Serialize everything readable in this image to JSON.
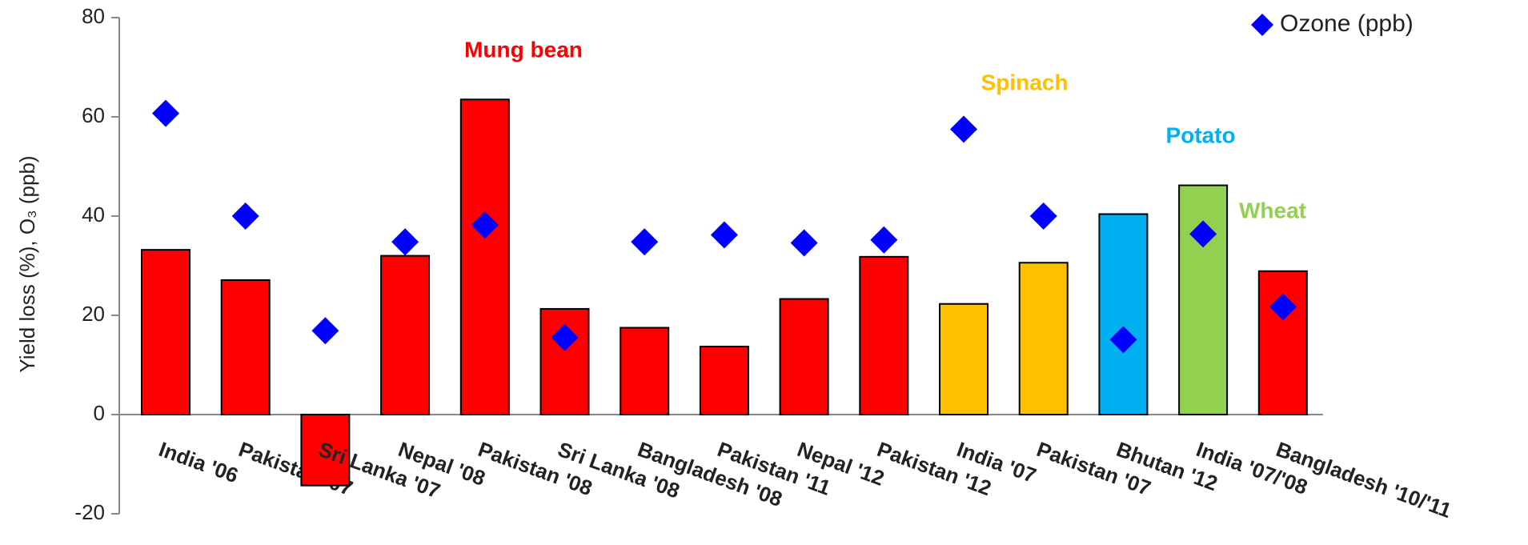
{
  "chart_data": {
    "type": "bar",
    "ylabel": "Yield loss (%), O₃ (ppb)",
    "categories": [
      "India '06",
      "Pakistan '07",
      "Sri Lanka '07",
      "Nepal '08",
      "Pakistan '08",
      "Sri Lanka '08",
      "Bangladesh '08",
      "Pakistan '11",
      "Nepal '12",
      "Pakistan '12",
      "India '07",
      "Pakistan '07",
      "Bhutan '12",
      "India '07/'08",
      "Bangladesh '10/'11"
    ],
    "values": [
      33.2,
      27.1,
      -14.3,
      32.0,
      63.5,
      21.3,
      17.5,
      13.7,
      23.3,
      31.8,
      22.3,
      30.6,
      40.4,
      46.2,
      28.9
    ],
    "colors": [
      "#ff0000",
      "#ff0000",
      "#ff0000",
      "#ff0000",
      "#ff0000",
      "#ff0000",
      "#ff0000",
      "#ff0000",
      "#ff0000",
      "#ff0000",
      "#ffc000",
      "#ffc000",
      "#00b0f0",
      "#92d050",
      "#ff0000"
    ],
    "series": [
      {
        "name": "Ozone (ppb)",
        "color": "#0000ff",
        "values": [
          60.7,
          40,
          16.9,
          34.8,
          38.2,
          15.5,
          34.8,
          36.2,
          34.6,
          35.2,
          57.5,
          40,
          15.1,
          36.4,
          21.7
        ]
      }
    ],
    "annotations": [
      {
        "text": "Mung bean",
        "color": "#ff0000"
      },
      {
        "text": "Spinach",
        "color": "#ffc000"
      },
      {
        "text": "Potato",
        "color": "#00b0f0"
      },
      {
        "text": "Wheat",
        "color": "#92d050"
      }
    ],
    "ylim": [
      -20,
      80
    ],
    "yticks": [
      -20,
      0,
      20,
      40,
      60,
      80
    ],
    "legend": "top-right"
  }
}
